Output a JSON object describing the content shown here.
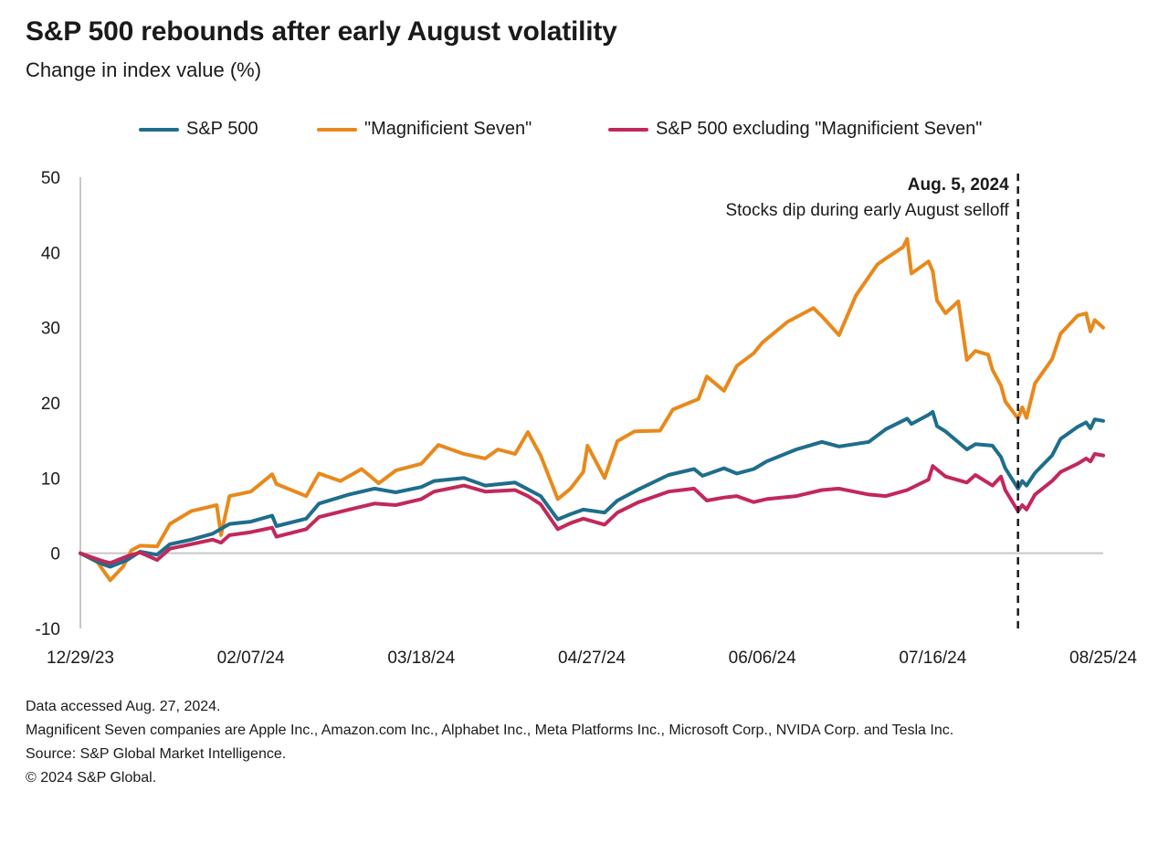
{
  "title": "S&P 500 rebounds after early August volatility",
  "subtitle": "Change in index value (%)",
  "legend": [
    {
      "label": "S&P 500",
      "color": "#1f6d8c"
    },
    {
      "label": "\"Magnificient Seven\"",
      "color": "#e8891c"
    },
    {
      "label": "S&P 500 excluding \"Magnificient Seven\"",
      "color": "#c2285a"
    }
  ],
  "annotation": {
    "title": "Aug. 5, 2024",
    "text": "Stocks dip during early August selloff"
  },
  "notes": {
    "accessed": "Data accessed Aug. 27, 2024.",
    "companies": "Magnificent Seven companies are Apple Inc., Amazon.com Inc., Alphabet Inc., Meta Platforms Inc., Microsoft Corp., NVIDA Corp. and Tesla Inc.",
    "source": "Source: S&P Global Market Intelligence.",
    "copyright": "© 2024 S&P Global."
  },
  "chart_data": {
    "type": "line",
    "title": "S&P 500 rebounds after early August volatility",
    "ylabel": "Change in index value (%)",
    "xlabel": "",
    "ylim": [
      -10,
      50
    ],
    "yticks": [
      -10,
      0,
      10,
      20,
      30,
      40,
      50
    ],
    "xlim": [
      "2023-12-29",
      "2024-08-25"
    ],
    "xticks": [
      "12/29/23",
      "02/07/24",
      "03/18/24",
      "04/27/24",
      "06/06/24",
      "07/16/24",
      "08/25/24"
    ],
    "grid": false,
    "legend_position": "top",
    "annotation": {
      "x": "2024-08-05",
      "label": "Aug. 5, 2024",
      "text": "Stocks dip during early August selloff",
      "style": "dashed vertical line"
    },
    "series": [
      {
        "name": "S&P 500",
        "color": "#1f6d8c",
        "points": [
          [
            "2023-12-29",
            0
          ],
          [
            "2024-01-03",
            -1.4
          ],
          [
            "2024-01-05",
            -1.8
          ],
          [
            "2024-01-09",
            -0.9
          ],
          [
            "2024-01-12",
            0.2
          ],
          [
            "2024-01-16",
            -0.2
          ],
          [
            "2024-01-19",
            1.2
          ],
          [
            "2024-01-24",
            1.8
          ],
          [
            "2024-01-29",
            2.6
          ],
          [
            "2024-02-02",
            3.9
          ],
          [
            "2024-02-07",
            4.2
          ],
          [
            "2024-02-12",
            5.0
          ],
          [
            "2024-02-13",
            3.6
          ],
          [
            "2024-02-20",
            4.6
          ],
          [
            "2024-02-23",
            6.6
          ],
          [
            "2024-03-01",
            7.8
          ],
          [
            "2024-03-07",
            8.6
          ],
          [
            "2024-03-12",
            8.1
          ],
          [
            "2024-03-18",
            8.8
          ],
          [
            "2024-03-21",
            9.6
          ],
          [
            "2024-03-28",
            10.0
          ],
          [
            "2024-04-02",
            9.0
          ],
          [
            "2024-04-09",
            9.4
          ],
          [
            "2024-04-12",
            8.5
          ],
          [
            "2024-04-15",
            7.6
          ],
          [
            "2024-04-19",
            4.5
          ],
          [
            "2024-04-22",
            5.2
          ],
          [
            "2024-04-25",
            5.8
          ],
          [
            "2024-04-30",
            5.4
          ],
          [
            "2024-05-03",
            7.0
          ],
          [
            "2024-05-08",
            8.5
          ],
          [
            "2024-05-15",
            10.4
          ],
          [
            "2024-05-21",
            11.2
          ],
          [
            "2024-05-23",
            10.3
          ],
          [
            "2024-05-28",
            11.3
          ],
          [
            "2024-05-31",
            10.6
          ],
          [
            "2024-06-04",
            11.2
          ],
          [
            "2024-06-07",
            12.2
          ],
          [
            "2024-06-14",
            13.8
          ],
          [
            "2024-06-20",
            14.8
          ],
          [
            "2024-06-24",
            14.2
          ],
          [
            "2024-07-01",
            14.8
          ],
          [
            "2024-07-05",
            16.5
          ],
          [
            "2024-07-10",
            17.9
          ],
          [
            "2024-07-11",
            17.2
          ],
          [
            "2024-07-15",
            18.4
          ],
          [
            "2024-07-16",
            18.8
          ],
          [
            "2024-07-17",
            16.9
          ],
          [
            "2024-07-19",
            16.2
          ],
          [
            "2024-07-24",
            13.8
          ],
          [
            "2024-07-26",
            14.5
          ],
          [
            "2024-07-30",
            14.3
          ],
          [
            "2024-08-01",
            12.8
          ],
          [
            "2024-08-02",
            11.3
          ],
          [
            "2024-08-05",
            8.6
          ],
          [
            "2024-08-06",
            9.6
          ],
          [
            "2024-08-07",
            9.0
          ],
          [
            "2024-08-09",
            10.7
          ],
          [
            "2024-08-13",
            13.0
          ],
          [
            "2024-08-15",
            15.2
          ],
          [
            "2024-08-19",
            16.8
          ],
          [
            "2024-08-21",
            17.4
          ],
          [
            "2024-08-22",
            16.6
          ],
          [
            "2024-08-23",
            17.8
          ],
          [
            "2024-08-25",
            17.6
          ]
        ]
      },
      {
        "name": "\"Magnificient Seven\"",
        "color": "#e8891c",
        "points": [
          [
            "2023-12-29",
            0
          ],
          [
            "2024-01-02",
            -1.2
          ],
          [
            "2024-01-05",
            -3.6
          ],
          [
            "2024-01-08",
            -1.8
          ],
          [
            "2024-01-10",
            0.4
          ],
          [
            "2024-01-12",
            1.0
          ],
          [
            "2024-01-16",
            0.9
          ],
          [
            "2024-01-19",
            3.9
          ],
          [
            "2024-01-24",
            5.6
          ],
          [
            "2024-01-30",
            6.4
          ],
          [
            "2024-01-31",
            2.4
          ],
          [
            "2024-02-02",
            7.6
          ],
          [
            "2024-02-07",
            8.2
          ],
          [
            "2024-02-12",
            10.5
          ],
          [
            "2024-02-13",
            9.2
          ],
          [
            "2024-02-20",
            7.6
          ],
          [
            "2024-02-23",
            10.6
          ],
          [
            "2024-02-28",
            9.6
          ],
          [
            "2024-03-04",
            11.2
          ],
          [
            "2024-03-08",
            9.3
          ],
          [
            "2024-03-12",
            11.0
          ],
          [
            "2024-03-18",
            11.9
          ],
          [
            "2024-03-22",
            14.4
          ],
          [
            "2024-03-28",
            13.2
          ],
          [
            "2024-04-02",
            12.6
          ],
          [
            "2024-04-05",
            13.8
          ],
          [
            "2024-04-09",
            13.2
          ],
          [
            "2024-04-12",
            16.1
          ],
          [
            "2024-04-15",
            13.0
          ],
          [
            "2024-04-19",
            7.2
          ],
          [
            "2024-04-22",
            8.6
          ],
          [
            "2024-04-25",
            10.8
          ],
          [
            "2024-04-26",
            14.3
          ],
          [
            "2024-04-30",
            10.0
          ],
          [
            "2024-05-03",
            14.9
          ],
          [
            "2024-05-07",
            16.2
          ],
          [
            "2024-05-13",
            16.3
          ],
          [
            "2024-05-16",
            19.1
          ],
          [
            "2024-05-22",
            20.5
          ],
          [
            "2024-05-24",
            23.5
          ],
          [
            "2024-05-28",
            21.6
          ],
          [
            "2024-05-31",
            24.9
          ],
          [
            "2024-06-04",
            26.6
          ],
          [
            "2024-06-06",
            28.0
          ],
          [
            "2024-06-12",
            30.8
          ],
          [
            "2024-06-18",
            32.6
          ],
          [
            "2024-06-20",
            31.5
          ],
          [
            "2024-06-24",
            29.0
          ],
          [
            "2024-06-28",
            34.3
          ],
          [
            "2024-07-03",
            38.4
          ],
          [
            "2024-07-05",
            39.2
          ],
          [
            "2024-07-09",
            40.7
          ],
          [
            "2024-07-10",
            41.8
          ],
          [
            "2024-07-11",
            37.2
          ],
          [
            "2024-07-15",
            38.8
          ],
          [
            "2024-07-16",
            37.5
          ],
          [
            "2024-07-17",
            33.6
          ],
          [
            "2024-07-19",
            31.9
          ],
          [
            "2024-07-22",
            33.5
          ],
          [
            "2024-07-24",
            25.7
          ],
          [
            "2024-07-26",
            26.9
          ],
          [
            "2024-07-29",
            26.4
          ],
          [
            "2024-07-30",
            24.4
          ],
          [
            "2024-08-01",
            22.3
          ],
          [
            "2024-08-02",
            20.2
          ],
          [
            "2024-08-05",
            17.9
          ],
          [
            "2024-08-06",
            19.4
          ],
          [
            "2024-08-07",
            18.0
          ],
          [
            "2024-08-09",
            22.6
          ],
          [
            "2024-08-13",
            25.8
          ],
          [
            "2024-08-15",
            29.2
          ],
          [
            "2024-08-19",
            31.6
          ],
          [
            "2024-08-21",
            31.9
          ],
          [
            "2024-08-22",
            29.5
          ],
          [
            "2024-08-23",
            31.0
          ],
          [
            "2024-08-25",
            30.0
          ]
        ]
      },
      {
        "name": "S&P 500 excluding \"Magnificient Seven\"",
        "color": "#c2285a",
        "points": [
          [
            "2023-12-29",
            0
          ],
          [
            "2024-01-03",
            -1.0
          ],
          [
            "2024-01-05",
            -1.3
          ],
          [
            "2024-01-09",
            -0.4
          ],
          [
            "2024-01-12",
            0.1
          ],
          [
            "2024-01-16",
            -0.9
          ],
          [
            "2024-01-19",
            0.6
          ],
          [
            "2024-01-24",
            1.2
          ],
          [
            "2024-01-29",
            1.8
          ],
          [
            "2024-01-31",
            1.4
          ],
          [
            "2024-02-02",
            2.4
          ],
          [
            "2024-02-07",
            2.8
          ],
          [
            "2024-02-12",
            3.4
          ],
          [
            "2024-02-13",
            2.2
          ],
          [
            "2024-02-20",
            3.2
          ],
          [
            "2024-02-23",
            4.8
          ],
          [
            "2024-03-01",
            5.8
          ],
          [
            "2024-03-07",
            6.6
          ],
          [
            "2024-03-12",
            6.4
          ],
          [
            "2024-03-18",
            7.2
          ],
          [
            "2024-03-21",
            8.2
          ],
          [
            "2024-03-28",
            9.0
          ],
          [
            "2024-04-02",
            8.2
          ],
          [
            "2024-04-09",
            8.4
          ],
          [
            "2024-04-12",
            7.6
          ],
          [
            "2024-04-15",
            6.5
          ],
          [
            "2024-04-19",
            3.2
          ],
          [
            "2024-04-22",
            4.0
          ],
          [
            "2024-04-25",
            4.6
          ],
          [
            "2024-04-30",
            3.8
          ],
          [
            "2024-05-03",
            5.4
          ],
          [
            "2024-05-08",
            6.8
          ],
          [
            "2024-05-15",
            8.2
          ],
          [
            "2024-05-21",
            8.6
          ],
          [
            "2024-05-24",
            7.0
          ],
          [
            "2024-05-28",
            7.4
          ],
          [
            "2024-05-31",
            7.6
          ],
          [
            "2024-06-04",
            6.8
          ],
          [
            "2024-06-07",
            7.2
          ],
          [
            "2024-06-14",
            7.6
          ],
          [
            "2024-06-20",
            8.4
          ],
          [
            "2024-06-24",
            8.6
          ],
          [
            "2024-07-01",
            7.8
          ],
          [
            "2024-07-05",
            7.6
          ],
          [
            "2024-07-10",
            8.4
          ],
          [
            "2024-07-15",
            9.8
          ],
          [
            "2024-07-16",
            11.6
          ],
          [
            "2024-07-19",
            10.2
          ],
          [
            "2024-07-24",
            9.4
          ],
          [
            "2024-07-26",
            10.4
          ],
          [
            "2024-07-30",
            9.0
          ],
          [
            "2024-08-01",
            10.2
          ],
          [
            "2024-08-02",
            8.4
          ],
          [
            "2024-08-05",
            5.6
          ],
          [
            "2024-08-06",
            6.4
          ],
          [
            "2024-08-07",
            5.8
          ],
          [
            "2024-08-09",
            7.8
          ],
          [
            "2024-08-13",
            9.6
          ],
          [
            "2024-08-15",
            10.8
          ],
          [
            "2024-08-19",
            11.9
          ],
          [
            "2024-08-21",
            12.6
          ],
          [
            "2024-08-22",
            12.2
          ],
          [
            "2024-08-23",
            13.2
          ],
          [
            "2024-08-25",
            13.0
          ]
        ]
      }
    ]
  }
}
